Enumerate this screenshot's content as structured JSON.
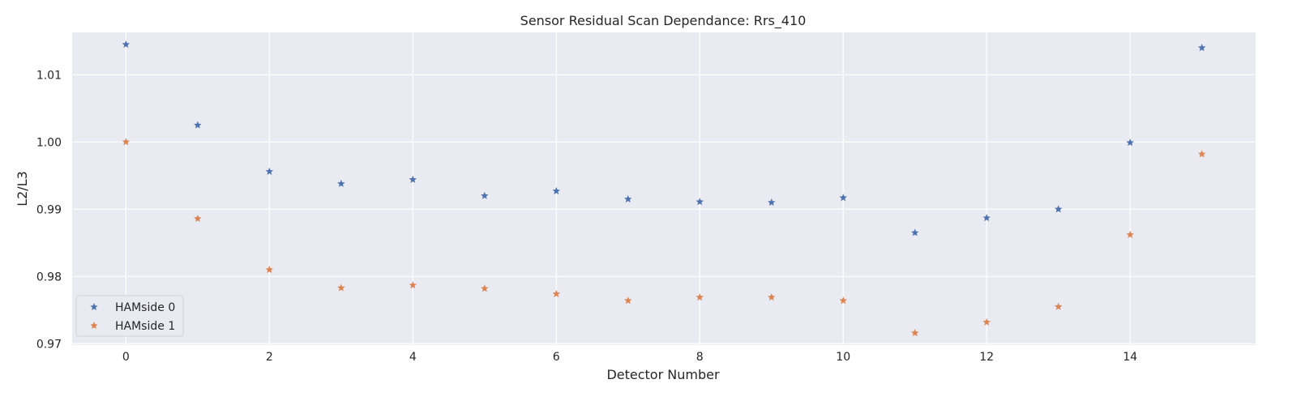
{
  "chart_data": {
    "type": "scatter",
    "title": "Sensor Residual Scan Dependance: Rrs_410",
    "xlabel": "Detector Number",
    "ylabel": "L2/L3",
    "xlim": [
      -0.75,
      15.75
    ],
    "ylim": [
      0.9698,
      1.0163
    ],
    "xticks": [
      0,
      2,
      4,
      6,
      8,
      10,
      12,
      14
    ],
    "xtick_labels": [
      "0",
      "2",
      "4",
      "6",
      "8",
      "10",
      "12",
      "14"
    ],
    "yticks": [
      0.97,
      0.98,
      0.99,
      1.0,
      1.01
    ],
    "ytick_labels": [
      "0.97",
      "0.98",
      "0.99",
      "1.00",
      "1.01"
    ],
    "grid": true,
    "legend_position": "lower-left",
    "background": "#eaeaf2",
    "marker": "star",
    "x": [
      0,
      1,
      2,
      3,
      4,
      5,
      6,
      7,
      8,
      9,
      10,
      11,
      12,
      13,
      14,
      15
    ],
    "series": [
      {
        "name": "HAMside 0",
        "color": "#4c72b0",
        "values": [
          1.0145,
          1.0025,
          0.9956,
          0.9938,
          0.9944,
          0.992,
          0.9927,
          0.9915,
          0.9911,
          0.991,
          0.9917,
          0.9865,
          0.9887,
          0.99,
          0.9999,
          1.014
        ]
      },
      {
        "name": "HAMside 1",
        "color": "#dd8452",
        "values": [
          1.0,
          0.9886,
          0.981,
          0.9783,
          0.9787,
          0.9782,
          0.9774,
          0.9764,
          0.9769,
          0.9769,
          0.9764,
          0.9716,
          0.9732,
          0.9755,
          0.9862,
          0.9982
        ]
      }
    ]
  }
}
